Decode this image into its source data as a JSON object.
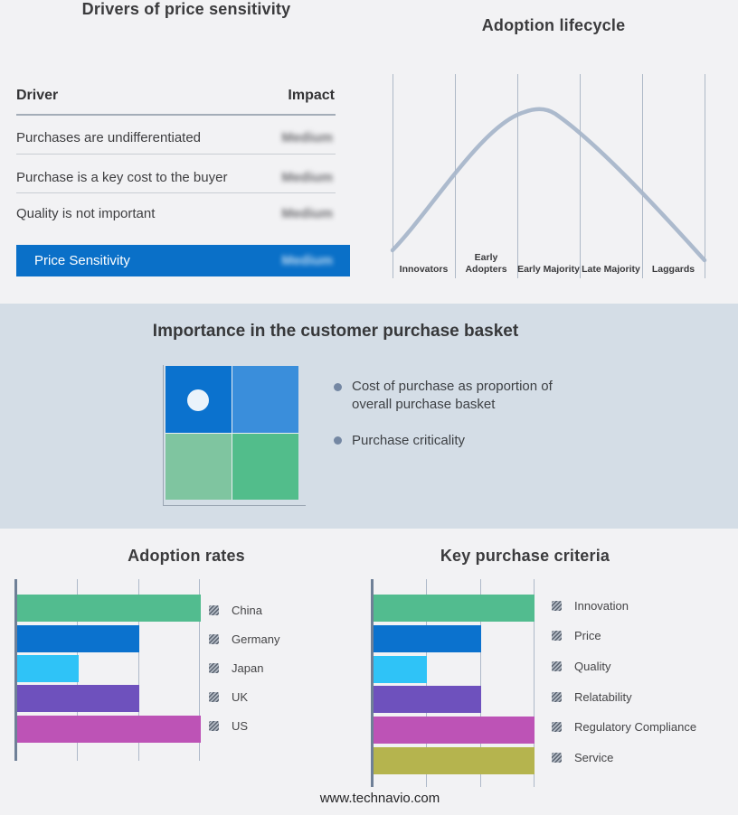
{
  "drivers": {
    "title": "Drivers of price sensitivity",
    "columns": {
      "driver": "Driver",
      "impact": "Impact"
    },
    "rows": [
      {
        "driver": "Purchases are undifferentiated",
        "impact": "Medium"
      },
      {
        "driver": "Purchase is a key cost to the buyer",
        "impact": "Medium"
      },
      {
        "driver": "Quality is not important",
        "impact": "Medium"
      }
    ],
    "summary_row": {
      "label": "Price Sensitivity",
      "impact": "Medium",
      "bg_color": "#0a70c8"
    },
    "impact_values_obscured": true
  },
  "basket": {
    "title": "Importance in the customer purchase basket",
    "bullets": [
      "Cost of purchase as proportion of overall purchase basket",
      "Purchase criticality"
    ],
    "quadrant_colors": {
      "top_left": "#0b72ce",
      "top_right": "#3a8edb",
      "bottom_left": "#7fc5a0",
      "bottom_right": "#52bd8b"
    },
    "marker_dot_color": "#eaf3fb"
  },
  "footer": {
    "url": "www.technavio.com"
  },
  "chart_data": [
    {
      "type": "line",
      "title": "Adoption lifecycle",
      "x_categories": [
        "Innovators",
        "Early Adopters",
        "Early Majority",
        "Late Majority",
        "Laggards"
      ],
      "shape": "bell_curve",
      "peak_category": "Early Majority",
      "line_color": "#a8b6ca",
      "grid": true
    },
    {
      "type": "bar",
      "orientation": "horizontal",
      "title": "Adoption rates",
      "categories": [
        "China",
        "Germany",
        "Japan",
        "UK",
        "US"
      ],
      "values": [
        3,
        2,
        1,
        2,
        3
      ],
      "xmax": 3,
      "colors": [
        "#52bc8f",
        "#0b72ce",
        "#2fc3f7",
        "#6e51bd",
        "#bd53b6"
      ],
      "legend_position": "right",
      "grid": true
    },
    {
      "type": "bar",
      "orientation": "horizontal",
      "title": "Key purchase criteria",
      "categories": [
        "Innovation",
        "Price",
        "Quality",
        "Relatability",
        "Regulatory Compliance",
        "Service"
      ],
      "values": [
        3,
        2,
        1,
        2,
        3,
        3
      ],
      "xmax": 3,
      "colors": [
        "#52bc8f",
        "#0b72ce",
        "#2fc3f7",
        "#6e51bd",
        "#bd53b6",
        "#b5b44e"
      ],
      "legend_position": "right",
      "grid": true
    }
  ]
}
